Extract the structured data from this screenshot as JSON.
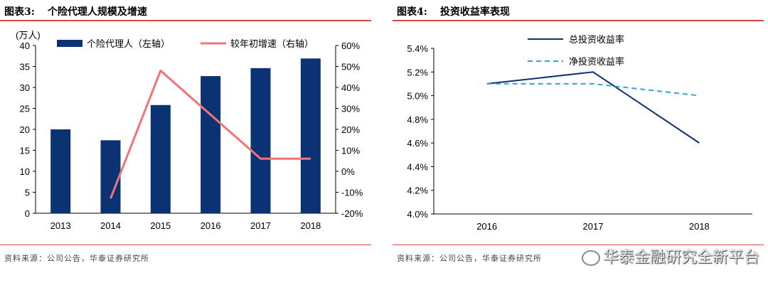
{
  "figures": [
    {
      "id": "left",
      "title_num": "图表3:",
      "title": "个险代理人规模及增速",
      "source": "资料来源：公司公告，华泰证券研究所"
    },
    {
      "id": "right",
      "title_num": "图表4:",
      "title": "投资收益率表现",
      "source": "资料来源：公司公告，华泰证券研究所"
    }
  ],
  "watermark": "华泰金融研究全新平台",
  "chart_data": [
    {
      "type": "bar",
      "categories": [
        "2013",
        "2014",
        "2015",
        "2016",
        "2017",
        "2018"
      ],
      "y_unit_label": "(万人)",
      "ylim": [
        0,
        40
      ],
      "yticks": [
        0,
        5,
        10,
        15,
        20,
        25,
        30,
        35,
        40
      ],
      "y2lim": [
        -20,
        60
      ],
      "y2ticks": [
        "-20%",
        "-10%",
        "0%",
        "10%",
        "20%",
        "30%",
        "40%",
        "50%",
        "60%"
      ],
      "y2tick_values": [
        -20,
        -10,
        0,
        10,
        20,
        30,
        40,
        50,
        60
      ],
      "series": [
        {
          "name": "个险代理人（左轴）",
          "kind": "bar",
          "axis": "left",
          "color": "#0b3272",
          "values": [
            20.0,
            17.4,
            25.8,
            32.7,
            34.6,
            36.9
          ]
        },
        {
          "name": "较年初增速（右轴）",
          "kind": "line",
          "axis": "right",
          "color": "#f07474",
          "values": [
            null,
            -13,
            48,
            27,
            6,
            6
          ]
        }
      ],
      "legend_position": "top",
      "grid": false
    },
    {
      "type": "line",
      "categories": [
        "2016",
        "2017",
        "2018"
      ],
      "ylim": [
        4.0,
        5.4
      ],
      "yticks": [
        "4.0%",
        "4.2%",
        "4.4%",
        "4.6%",
        "4.8%",
        "5.0%",
        "5.2%",
        "5.4%"
      ],
      "ytick_values": [
        4.0,
        4.2,
        4.4,
        4.6,
        4.8,
        5.0,
        5.2,
        5.4
      ],
      "series": [
        {
          "name": "总投资收益率",
          "color": "#0b3272",
          "dash": false,
          "values": [
            5.1,
            5.2,
            4.6
          ]
        },
        {
          "name": "净投资收益率",
          "color": "#2ea6d8",
          "dash": true,
          "values": [
            5.1,
            5.1,
            5.0
          ]
        }
      ],
      "legend_position": "top-center",
      "grid": false
    }
  ]
}
